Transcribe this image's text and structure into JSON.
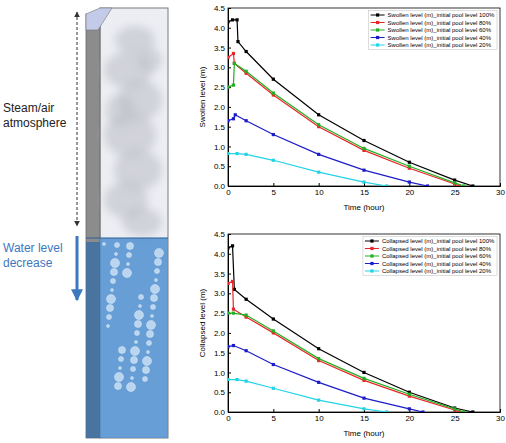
{
  "illustration": {
    "top_label": "Steam/air atmosphere",
    "bottom_label": "Water level decrease"
  },
  "chart_data": [
    {
      "type": "line",
      "x_label": "Time (hour)",
      "y_label": "Swollen level (m)",
      "xlim": [
        0,
        30
      ],
      "xticks": [
        0,
        5,
        10,
        15,
        20,
        25,
        30
      ],
      "ylim": [
        0,
        4.5
      ],
      "yticks": [
        {
          "value": 0,
          "label": "0.0"
        },
        {
          "value": 0.5,
          "label": "0.5"
        },
        {
          "value": 1,
          "label": "1.0"
        },
        {
          "value": 1.5,
          "label": "1.5"
        },
        {
          "value": 2,
          "label": "2.0"
        },
        {
          "value": 2.5,
          "label": "2.5"
        },
        {
          "value": 3,
          "label": "3.0"
        },
        {
          "value": 3.5,
          "label": "3.5"
        },
        {
          "value": 4,
          "label": "4.0"
        },
        {
          "value": 4.5,
          "label": "4.5"
        }
      ],
      "legend": "upper right",
      "marker": "square",
      "line_style": "solid",
      "series": [
        {
          "name": "Swollen level (m)_initial pool level 100%",
          "color": "#000000",
          "x": [
            0,
            0.5,
            1,
            1.1,
            2,
            5,
            10,
            15,
            20,
            25,
            27
          ],
          "values": [
            4.15,
            4.2,
            4.2,
            3.65,
            3.4,
            2.7,
            1.8,
            1.15,
            0.6,
            0.15,
            0
          ]
        },
        {
          "name": "Swollen level (m)_initial pool level 80%",
          "color": "#e8262a",
          "x": [
            0,
            0.6,
            0.7,
            2,
            5,
            10,
            15,
            20,
            25,
            25.5
          ],
          "values": [
            3.25,
            3.35,
            3.1,
            2.85,
            2.3,
            1.5,
            0.9,
            0.45,
            0.05,
            0
          ]
        },
        {
          "name": "Swollen level (m)_initial pool level 60%",
          "color": "#22b022",
          "x": [
            0,
            0.6,
            0.7,
            2,
            5,
            10,
            15,
            20,
            25,
            26
          ],
          "values": [
            2.5,
            2.55,
            3.1,
            2.9,
            2.35,
            1.55,
            0.95,
            0.5,
            0.08,
            0
          ]
        },
        {
          "name": "Swollen level (m)_initial pool level 40%",
          "color": "#1c1cc8",
          "x": [
            0,
            0.6,
            0.8,
            2,
            5,
            10,
            15,
            20,
            22
          ],
          "values": [
            1.65,
            1.7,
            1.8,
            1.65,
            1.3,
            0.8,
            0.4,
            0.1,
            0
          ]
        },
        {
          "name": "Swollen level (m)_initial pool level 20%",
          "color": "#22d3e6",
          "x": [
            0,
            1,
            2,
            5,
            10,
            15,
            17.5
          ],
          "values": [
            0.82,
            0.82,
            0.8,
            0.65,
            0.35,
            0.1,
            0
          ]
        }
      ]
    },
    {
      "type": "line",
      "x_label": "Time (hour)",
      "y_label": "Collapsed level (m)",
      "xlim": [
        0,
        30
      ],
      "xticks": [
        0,
        5,
        10,
        15,
        20,
        25,
        30
      ],
      "ylim": [
        0,
        4.5
      ],
      "yticks": [
        {
          "value": 0,
          "label": "0.0"
        },
        {
          "value": 0.5,
          "label": "0.5"
        },
        {
          "value": 1,
          "label": "1.0"
        },
        {
          "value": 1.5,
          "label": "1.5"
        },
        {
          "value": 2,
          "label": "2.0"
        },
        {
          "value": 2.5,
          "label": "2.5"
        },
        {
          "value": 3,
          "label": "3.0"
        },
        {
          "value": 3.5,
          "label": "3.5"
        },
        {
          "value": 4,
          "label": "4.0"
        },
        {
          "value": 4.5,
          "label": "4.5"
        }
      ],
      "legend": "upper right",
      "marker": "square",
      "line_style": "solid",
      "series": [
        {
          "name": "Collapsed level (m)_initial pool level 100%",
          "color": "#000000",
          "x": [
            0,
            0.5,
            0.7,
            2,
            5,
            10,
            15,
            20,
            25,
            27
          ],
          "values": [
            4.15,
            4.2,
            3.1,
            2.85,
            2.35,
            1.6,
            1.0,
            0.5,
            0.1,
            0
          ]
        },
        {
          "name": "Collapsed level (m)_initial pool level 80%",
          "color": "#e8262a",
          "x": [
            0,
            0.5,
            0.6,
            2,
            5,
            10,
            15,
            20,
            25,
            25.5
          ],
          "values": [
            3.25,
            3.3,
            2.6,
            2.4,
            2.0,
            1.3,
            0.8,
            0.4,
            0.05,
            0
          ]
        },
        {
          "name": "Collapsed level (m)_initial pool level 60%",
          "color": "#22b022",
          "x": [
            0,
            0.6,
            2,
            5,
            10,
            15,
            20,
            25,
            26
          ],
          "values": [
            2.5,
            2.5,
            2.45,
            2.05,
            1.35,
            0.85,
            0.45,
            0.08,
            0
          ]
        },
        {
          "name": "Collapsed level (m)_initial pool level 40%",
          "color": "#1c1cc8",
          "x": [
            0,
            0.6,
            2,
            5,
            10,
            15,
            20,
            21.5
          ],
          "values": [
            1.65,
            1.68,
            1.55,
            1.2,
            0.75,
            0.35,
            0.08,
            0
          ]
        },
        {
          "name": "Collapsed level (m)_initial pool level 20%",
          "color": "#22d3e6",
          "x": [
            0,
            1,
            2,
            5,
            10,
            15,
            17.5
          ],
          "values": [
            0.82,
            0.82,
            0.78,
            0.6,
            0.3,
            0.08,
            0
          ]
        }
      ]
    }
  ]
}
